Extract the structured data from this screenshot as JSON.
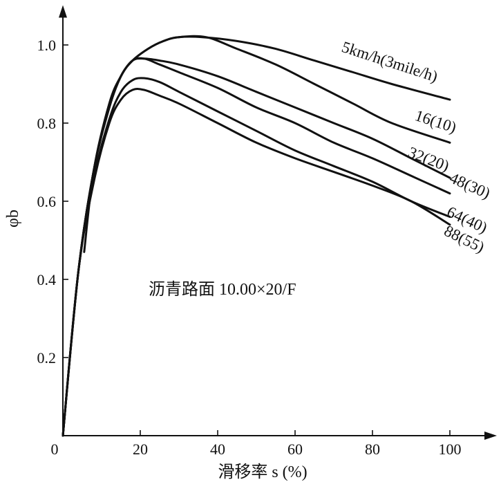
{
  "chart_data": {
    "type": "line",
    "title": "",
    "xlabel": "滑移率 s (%)",
    "ylabel": "φb",
    "xlim": [
      0,
      110
    ],
    "ylim": [
      0,
      1.1
    ],
    "grid": false,
    "x_ticks": [
      0,
      20,
      40,
      60,
      80,
      100
    ],
    "x_tick_labels": [
      "0",
      "20",
      "40",
      "60",
      "80",
      "100"
    ],
    "y_ticks": [
      0.2,
      0.4,
      0.6,
      0.8,
      1.0
    ],
    "y_tick_labels": [
      "0.2",
      "0.4",
      "0.6",
      "0.8",
      "1.0"
    ],
    "annotation": "沥青路面 10.00×20/F",
    "series": [
      {
        "name": "5km/h(3mile/h)",
        "x": [
          0,
          4,
          8,
          12,
          15,
          18,
          22,
          26,
          30,
          36,
          45,
          55,
          65,
          75,
          85,
          100
        ],
        "y": [
          0,
          0.42,
          0.68,
          0.84,
          0.92,
          0.96,
          0.99,
          1.01,
          1.02,
          1.02,
          1.01,
          0.99,
          0.96,
          0.93,
          0.9,
          0.86
        ]
      },
      {
        "name": "16(10)",
        "x": [
          0,
          4,
          8,
          12,
          15,
          18,
          22,
          26,
          30,
          37,
          45,
          55,
          65,
          75,
          85,
          100
        ],
        "y": [
          0,
          0.42,
          0.68,
          0.84,
          0.92,
          0.96,
          0.99,
          1.01,
          1.02,
          1.02,
          0.99,
          0.95,
          0.9,
          0.85,
          0.8,
          0.75
        ]
      },
      {
        "name": "32(20)",
        "x": [
          0,
          4,
          8,
          12,
          15,
          18,
          21,
          25,
          30,
          40,
          50,
          60,
          70,
          80,
          90,
          100
        ],
        "y": [
          0,
          0.42,
          0.68,
          0.85,
          0.92,
          0.96,
          0.965,
          0.96,
          0.95,
          0.92,
          0.88,
          0.84,
          0.8,
          0.76,
          0.71,
          0.66
        ]
      },
      {
        "name": "48(30)",
        "x": [
          5.5,
          8,
          12,
          15,
          18,
          21,
          25,
          30,
          40,
          50,
          60,
          70,
          80,
          90,
          100
        ],
        "y": [
          0.47,
          0.68,
          0.85,
          0.92,
          0.96,
          0.965,
          0.95,
          0.93,
          0.89,
          0.84,
          0.8,
          0.75,
          0.71,
          0.665,
          0.62
        ]
      },
      {
        "name": "64(40)",
        "x": [
          0,
          4,
          8,
          12,
          15,
          18,
          21,
          25,
          30,
          40,
          50,
          60,
          70,
          80,
          90,
          100
        ],
        "y": [
          0,
          0.42,
          0.66,
          0.81,
          0.88,
          0.91,
          0.915,
          0.905,
          0.88,
          0.83,
          0.78,
          0.73,
          0.69,
          0.65,
          0.6,
          0.56
        ]
      },
      {
        "name": "88(55)",
        "x": [
          0,
          4,
          8,
          12,
          15,
          18,
          21,
          25,
          30,
          40,
          50,
          60,
          70,
          80,
          90,
          100
        ],
        "y": [
          0,
          0.42,
          0.65,
          0.8,
          0.86,
          0.885,
          0.885,
          0.87,
          0.85,
          0.8,
          0.75,
          0.71,
          0.675,
          0.64,
          0.6,
          0.54
        ]
      }
    ],
    "colors": {
      "ink": "#111111",
      "background": "#ffffff"
    }
  }
}
